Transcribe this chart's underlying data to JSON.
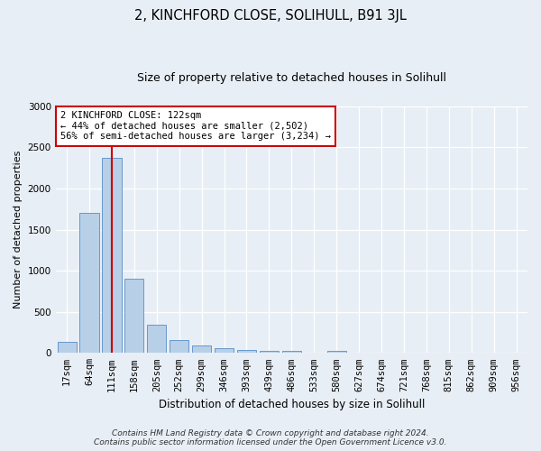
{
  "title": "2, KINCHFORD CLOSE, SOLIHULL, B91 3JL",
  "subtitle": "Size of property relative to detached houses in Solihull",
  "xlabel": "Distribution of detached houses by size in Solihull",
  "ylabel": "Number of detached properties",
  "categories": [
    "17sqm",
    "64sqm",
    "111sqm",
    "158sqm",
    "205sqm",
    "252sqm",
    "299sqm",
    "346sqm",
    "393sqm",
    "439sqm",
    "486sqm",
    "533sqm",
    "580sqm",
    "627sqm",
    "674sqm",
    "721sqm",
    "768sqm",
    "815sqm",
    "862sqm",
    "909sqm",
    "956sqm"
  ],
  "values": [
    140,
    1700,
    2370,
    900,
    340,
    160,
    90,
    55,
    35,
    20,
    25,
    5,
    20,
    0,
    0,
    0,
    0,
    0,
    0,
    0,
    0
  ],
  "bar_color": "#b8cfe8",
  "bar_edge_color": "#6699cc",
  "highlight_bar_index": 2,
  "highlight_color": "#cc0000",
  "annotation_text": "2 KINCHFORD CLOSE: 122sqm\n← 44% of detached houses are smaller (2,502)\n56% of semi-detached houses are larger (3,234) →",
  "annotation_box_facecolor": "#ffffff",
  "annotation_box_edgecolor": "#cc0000",
  "ylim": [
    0,
    3000
  ],
  "yticks": [
    0,
    500,
    1000,
    1500,
    2000,
    2500,
    3000
  ],
  "footer_line1": "Contains HM Land Registry data © Crown copyright and database right 2024.",
  "footer_line2": "Contains public sector information licensed under the Open Government Licence v3.0.",
  "bg_color": "#e8eef5",
  "plot_bg_color": "#e8eef5",
  "grid_color": "#ffffff",
  "title_fontsize": 10.5,
  "subtitle_fontsize": 9,
  "xlabel_fontsize": 8.5,
  "ylabel_fontsize": 8,
  "tick_fontsize": 7.5,
  "annotation_fontsize": 7.5,
  "footer_fontsize": 6.5
}
